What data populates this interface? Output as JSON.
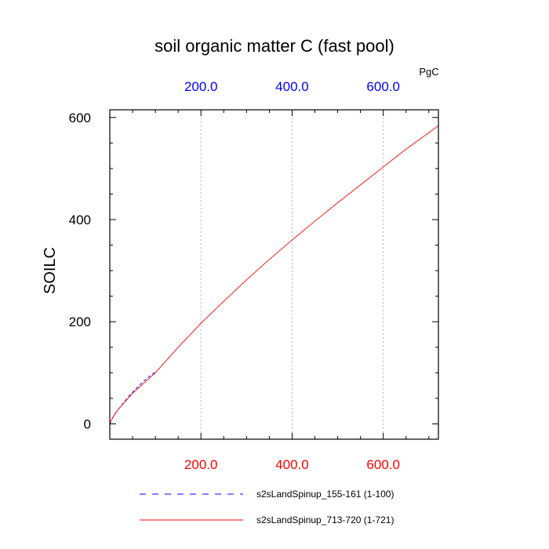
{
  "chart_data": {
    "type": "line",
    "title": "soil organic matter C (fast pool)",
    "ylabel": "SOILC",
    "units": "PgC",
    "xlim": [
      0,
      721
    ],
    "ylim": [
      -30,
      615
    ],
    "grid": {
      "vertical": true,
      "horizontal": false
    },
    "legend_position": "bottom",
    "bottom_axis": {
      "color": "#ff0000",
      "ticks": [
        200,
        400,
        600
      ],
      "tick_labels": [
        "200.0",
        "400.0",
        "600.0"
      ]
    },
    "top_axis": {
      "color": "#0000ff",
      "ticks": [
        200,
        400,
        600
      ],
      "tick_labels": [
        "200.0",
        "400.0",
        "600.0"
      ]
    },
    "left_axis": {
      "ticks": [
        0,
        200,
        400,
        600
      ],
      "tick_labels": [
        "0",
        "200",
        "400",
        "600"
      ]
    },
    "series": [
      {
        "name": "s2sLandSpinup_155-161 (1-100)",
        "color": "#0000ff",
        "style": "dashed",
        "x": [
          0,
          5,
          10,
          20,
          30,
          40,
          50,
          60,
          70,
          80,
          90,
          100
        ],
        "y": [
          0,
          10,
          18,
          30,
          41,
          52,
          62,
          71,
          80,
          88,
          95,
          102
        ]
      },
      {
        "name": "s2sLandSpinup_713-720 (1-721)",
        "color": "#ff0000",
        "style": "solid",
        "x": [
          0,
          5,
          10,
          20,
          50,
          100,
          150,
          200,
          250,
          300,
          350,
          400,
          450,
          500,
          550,
          600,
          650,
          700,
          721
        ],
        "y": [
          0,
          10,
          18,
          30,
          60,
          100,
          150,
          197,
          240,
          282,
          322,
          360,
          397,
          433,
          468,
          503,
          538,
          570,
          584
        ]
      }
    ]
  }
}
